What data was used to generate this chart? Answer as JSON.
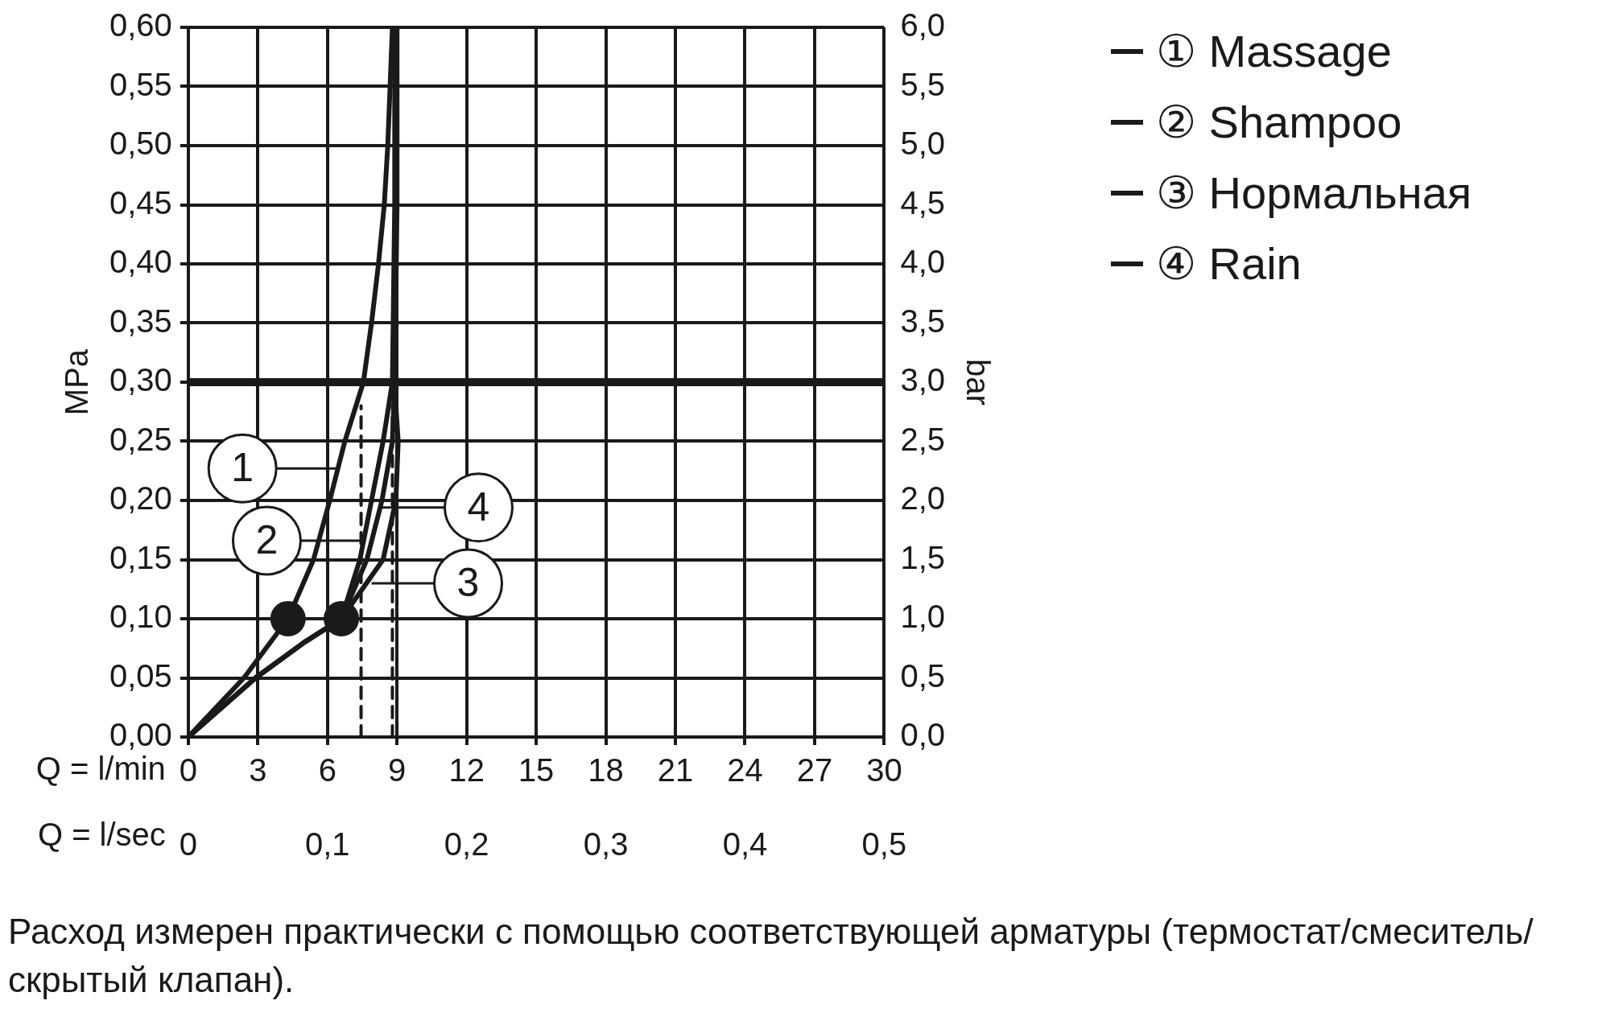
{
  "chart_data": {
    "type": "line",
    "xlabel": "Q = l/min",
    "x2label": "Q = l/sec",
    "ylabel": "MPa",
    "y2label": "bar",
    "xlim": [
      0,
      30
    ],
    "xticks": [
      0,
      3,
      6,
      9,
      12,
      15,
      18,
      21,
      24,
      27,
      30
    ],
    "x2lim": [
      0,
      0.5
    ],
    "x2ticks": [
      0,
      {
        "value": 0.1,
        "label": "0,1"
      },
      {
        "value": 0.2,
        "label": "0,2"
      },
      {
        "value": 0.3,
        "label": "0,3"
      },
      {
        "value": 0.4,
        "label": "0,4"
      },
      {
        "value": 0.5,
        "label": "0,5"
      }
    ],
    "ylim": [
      0,
      0.6
    ],
    "yticks": [
      {
        "value": 0,
        "label": "0,00"
      },
      {
        "value": 0.05,
        "label": "0,05"
      },
      {
        "value": 0.1,
        "label": "0,10"
      },
      {
        "value": 0.15,
        "label": "0,15"
      },
      {
        "value": 0.2,
        "label": "0,20"
      },
      {
        "value": 0.25,
        "label": "0,25"
      },
      {
        "value": 0.3,
        "label": "0,30"
      },
      {
        "value": 0.35,
        "label": "0,35"
      },
      {
        "value": 0.4,
        "label": "0,40"
      },
      {
        "value": 0.45,
        "label": "0,45"
      },
      {
        "value": 0.5,
        "label": "0,50"
      },
      {
        "value": 0.55,
        "label": "0,55"
      },
      {
        "value": 0.6,
        "label": "0,60"
      }
    ],
    "y2lim": [
      0,
      6
    ],
    "y2ticks": [
      {
        "value": 0,
        "label": "0,0"
      },
      {
        "value": 0.5,
        "label": "0,5"
      },
      {
        "value": 1,
        "label": "1,0"
      },
      {
        "value": 1.5,
        "label": "1,5"
      },
      {
        "value": 2,
        "label": "2,0"
      },
      {
        "value": 2.5,
        "label": "2,5"
      },
      {
        "value": 3,
        "label": "3,0"
      },
      {
        "value": 3.5,
        "label": "3,5"
      },
      {
        "value": 4,
        "label": "4,0"
      },
      {
        "value": 4.5,
        "label": "4,5"
      },
      {
        "value": 5,
        "label": "5,0"
      },
      {
        "value": 5.5,
        "label": "5,5"
      },
      {
        "value": 6,
        "label": "6,0"
      }
    ],
    "grid": true,
    "legend": "top right",
    "line_style": "solid",
    "marker": "none",
    "series": [
      {
        "name": "① Massage",
        "color": "#1a1a1a",
        "x": [
          0,
          2.4,
          4.3,
          5.4,
          6.1,
          6.75,
          7.55,
          7.9,
          8.2,
          8.45,
          8.6,
          8.7,
          8.8
        ],
        "values": [
          0,
          0.05,
          0.1,
          0.15,
          0.2,
          0.25,
          0.3,
          0.35,
          0.4,
          0.45,
          0.5,
          0.55,
          0.6
        ]
      },
      {
        "name": "② Shampoo",
        "color": "#1a1a1a",
        "x": [
          0,
          2.9,
          5.0,
          6.6,
          7.4,
          7.9,
          8.4,
          8.8,
          8.9,
          8.9
        ],
        "values": [
          0,
          0.05,
          0.08,
          0.1,
          0.15,
          0.2,
          0.25,
          0.3,
          0.45,
          0.6
        ]
      },
      {
        "name": "③ Нормальная",
        "color": "#1a1a1a",
        "x": [
          0,
          2.9,
          5.0,
          6.6,
          8.4,
          8.95,
          9.05,
          8.95
        ],
        "values": [
          0,
          0.05,
          0.08,
          0.1,
          0.15,
          0.2,
          0.25,
          0.28
        ]
      },
      {
        "name": "④ Rain",
        "color": "#1a1a1a",
        "x": [
          0,
          2.9,
          5.0,
          6.6,
          7.7,
          8.35,
          8.8,
          8.9,
          9.0,
          9.0
        ],
        "values": [
          0,
          0.05,
          0.08,
          0.1,
          0.15,
          0.2,
          0.25,
          0.3,
          0.45,
          0.6
        ]
      },
      {
        "type": "line",
        "line_style": "dashed",
        "color": "#1a1a1a",
        "x": [
          7.45,
          7.45
        ],
        "values": [
          0,
          0.28
        ]
      },
      {
        "type": "line",
        "line_style": "dashed",
        "color": "#1a1a1a",
        "x": [
          8.8,
          8.8
        ],
        "values": [
          0,
          0.28
        ]
      },
      {
        "type": "scatter",
        "marker": "circle",
        "color": "#1a1a1a",
        "x": [
          4.3,
          6.6
        ],
        "values": [
          0.1,
          0.1
        ]
      }
    ],
    "ref_lines": [
      {
        "axis": "y",
        "value": 0.3,
        "color": "#1a1a1a"
      }
    ],
    "annotations": [
      {
        "text": "1",
        "x": 6.5,
        "y": 0.227
      },
      {
        "text": "2",
        "x": 7.55,
        "y": 0.166
      },
      {
        "text": "4",
        "x": 8.35,
        "y": 0.194
      },
      {
        "text": "3",
        "x": 7.9,
        "y": 0.13
      },
      "Расход измерен практически с помощью соответствующей арматуры (термостат/смеситель/скрытый клапан)."
    ]
  }
}
